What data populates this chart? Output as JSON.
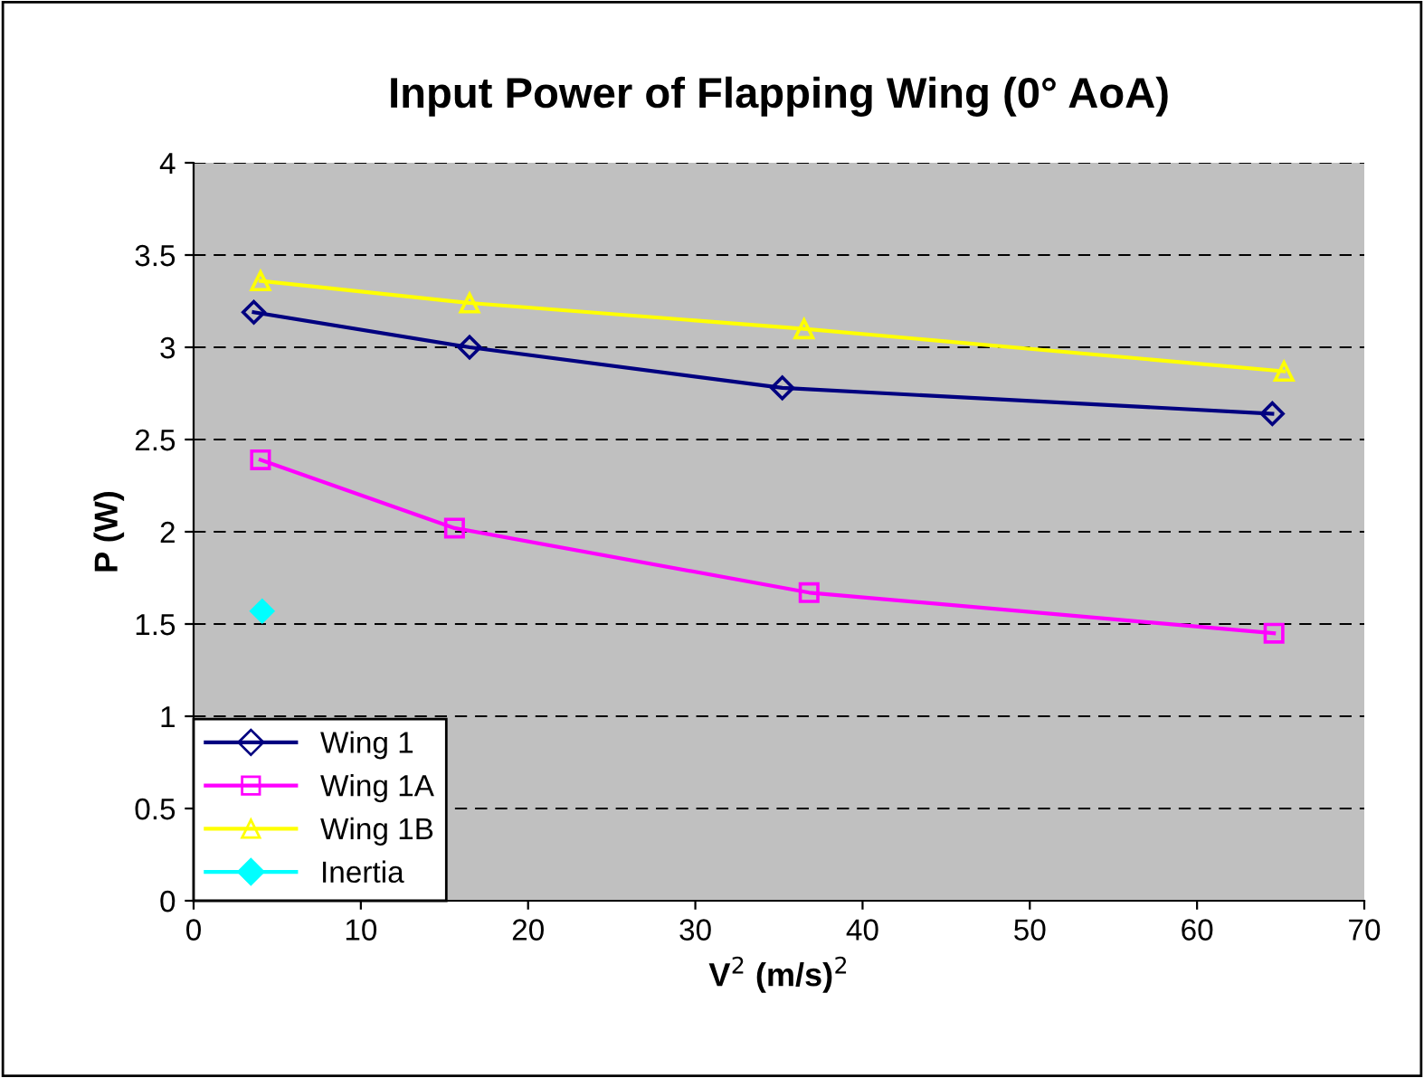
{
  "chart_data": {
    "type": "line",
    "title": "Input Power of Flapping Wing (0° AoA)",
    "xlabel": "V$^{2}$ (m/s)$^{2}$",
    "ylabel": "P (W)",
    "xlim": [
      0,
      70
    ],
    "xticks": [
      0,
      10,
      20,
      30,
      40,
      50,
      60,
      70
    ],
    "ylim": [
      0,
      4
    ],
    "yticks": [
      0,
      0.5,
      1,
      1.5,
      2,
      2.5,
      3,
      3.5,
      4
    ],
    "grid": "y",
    "legend": "bottom left",
    "series": [
      {
        "name": "Wing 1",
        "color": "#000080",
        "marker": "diamond",
        "x": [
          3.6,
          16.5,
          35.2,
          64.5
        ],
        "values": [
          3.19,
          3.0,
          2.78,
          2.64
        ]
      },
      {
        "name": "Wing 1A",
        "color": "#ff00ff",
        "marker": "square",
        "x": [
          4.0,
          15.6,
          36.8,
          64.6
        ],
        "values": [
          2.39,
          2.02,
          1.67,
          1.45
        ]
      },
      {
        "name": "Wing 1B",
        "color": "#ffff00",
        "marker": "triangle",
        "x": [
          4.0,
          16.5,
          36.5,
          65.2
        ],
        "values": [
          3.36,
          3.24,
          3.1,
          2.87
        ]
      },
      {
        "name": "Inertia",
        "color": "#00ffff",
        "type": "scatter",
        "marker": "diamond",
        "x": [
          4.1
        ],
        "values": [
          1.57
        ]
      }
    ]
  }
}
